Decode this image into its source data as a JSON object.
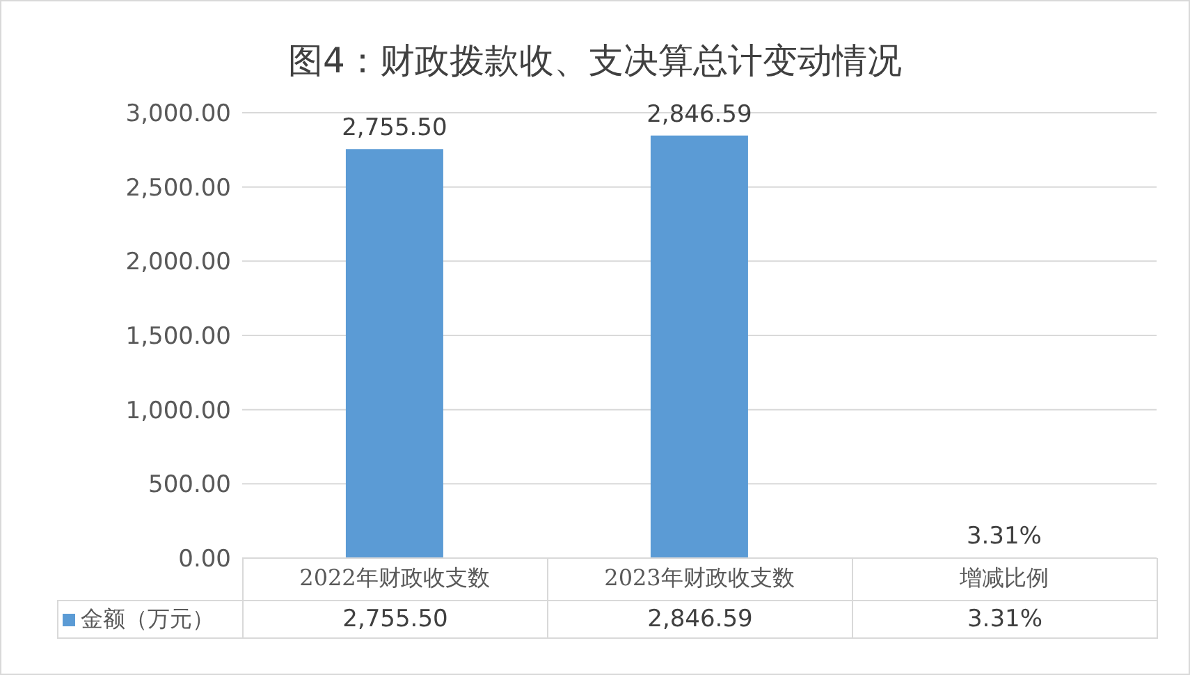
{
  "chart_data": {
    "type": "bar",
    "title": "图4：财政拨款收、支决算总计变动情况",
    "categories": [
      "2022年财政收支数",
      "2023年财政收支数",
      "增减比例"
    ],
    "series": [
      {
        "name": "金额（万元）",
        "color": "#5b9bd5",
        "values": [
          2755.5,
          2846.59,
          3.31
        ],
        "value_labels": [
          "2,755.50",
          "2,846.59",
          "3.31%"
        ]
      }
    ],
    "ylim": [
      0,
      3000
    ],
    "yticks": [
      {
        "value": 0,
        "label": "0.00"
      },
      {
        "value": 500,
        "label": "500.00"
      },
      {
        "value": 1000,
        "label": "1,000.00"
      },
      {
        "value": 1500,
        "label": "1,500.00"
      },
      {
        "value": 2000,
        "label": "2,000.00"
      },
      {
        "value": 2500,
        "label": "2,500.00"
      },
      {
        "value": 3000,
        "label": "3,000.00"
      }
    ],
    "grid": "y",
    "legend": "bottom",
    "data_labels": true
  }
}
